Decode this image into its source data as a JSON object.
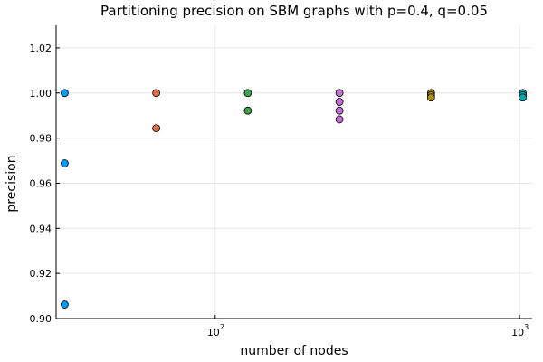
{
  "chart_data": {
    "type": "scatter",
    "title": "Partitioning precision on SBM graphs with p=0.4, q=0.05",
    "xlabel": "number of nodes",
    "ylabel": "precision",
    "xscale": "log10",
    "xlim": [
      30,
      1100
    ],
    "ylim": [
      0.9,
      1.03
    ],
    "grid": true,
    "legend": "none",
    "x_ticks": [
      {
        "value": 100,
        "base": "10",
        "exp": "2"
      },
      {
        "value": 1000,
        "base": "10",
        "exp": "3"
      }
    ],
    "y_ticks": [
      {
        "value": 0.9,
        "label": "0.90"
      },
      {
        "value": 0.92,
        "label": "0.92"
      },
      {
        "value": 0.94,
        "label": "0.94"
      },
      {
        "value": 0.96,
        "label": "0.96"
      },
      {
        "value": 0.98,
        "label": "0.98"
      },
      {
        "value": 1.0,
        "label": "1.00"
      },
      {
        "value": 1.02,
        "label": "1.02"
      }
    ],
    "series": [
      {
        "color": "#009AFA",
        "x": [
          32,
          32,
          32
        ],
        "y": [
          1.0,
          0.9688,
          0.9062
        ]
      },
      {
        "color": "#E26F46",
        "x": [
          64,
          64
        ],
        "y": [
          1.0,
          0.9844
        ]
      },
      {
        "color": "#3DA44D",
        "x": [
          128,
          128
        ],
        "y": [
          1.0,
          0.9922
        ]
      },
      {
        "color": "#C271D2",
        "x": [
          256,
          256,
          256,
          256
        ],
        "y": [
          1.0,
          0.9961,
          0.9922,
          0.9883
        ]
      },
      {
        "color": "#AC8D18",
        "x": [
          512,
          512,
          512
        ],
        "y": [
          1.0,
          0.999,
          0.998
        ]
      },
      {
        "color": "#00A9AD",
        "x": [
          1024,
          1024,
          1024
        ],
        "y": [
          1.0,
          0.999,
          0.998
        ]
      }
    ]
  }
}
